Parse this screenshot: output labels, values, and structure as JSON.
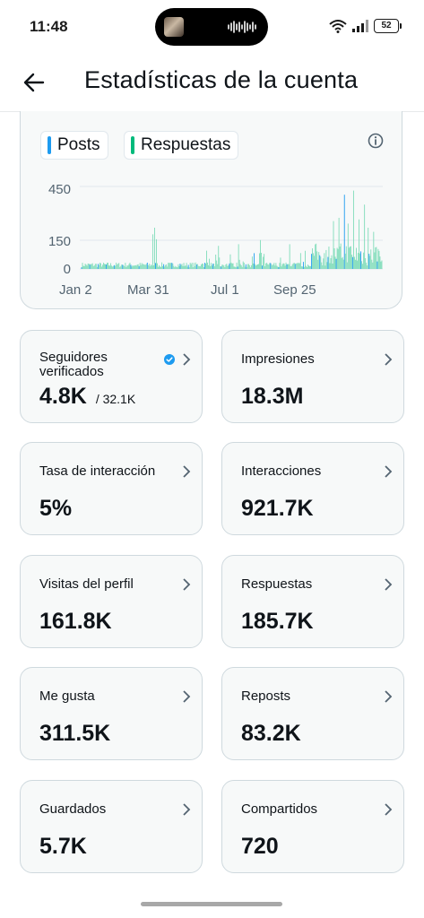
{
  "status_bar": {
    "time": "11:48",
    "battery": "52"
  },
  "header": {
    "title": "Estadísticas de la cuenta"
  },
  "chart": {
    "legend": [
      {
        "label": "Posts",
        "color": "#1d9bf0"
      },
      {
        "label": "Respuestas",
        "color": "#00ba7c"
      }
    ],
    "info_icon": "info-icon"
  },
  "chart_data": {
    "type": "bar",
    "y_ticks": [
      "450",
      "150",
      "0"
    ],
    "x_ticks": [
      "Jan 2",
      "Mar 31",
      "Jul 1",
      "Sep 25"
    ],
    "ylim": [
      0,
      450
    ],
    "grid": true,
    "legend_position": "top-left",
    "series": [
      {
        "name": "Respuestas",
        "color": "#00ba7c",
        "values": []
      }
    ]
  },
  "metrics": [
    {
      "label": "Seguidores verificados",
      "value": "4.8K",
      "sub": "/ 32.1K",
      "verified": true
    },
    {
      "label": "Impresiones",
      "value": "18.3M"
    },
    {
      "label": "Tasa de interacción",
      "value": "5%"
    },
    {
      "label": "Interacciones",
      "value": "921.7K"
    },
    {
      "label": "Visitas del perfil",
      "value": "161.8K"
    },
    {
      "label": "Respuestas",
      "value": "185.7K"
    },
    {
      "label": "Me gusta",
      "value": "311.5K"
    },
    {
      "label": "Reposts",
      "value": "83.2K"
    },
    {
      "label": "Guardados",
      "value": "5.7K"
    },
    {
      "label": "Compartidos",
      "value": "720"
    }
  ]
}
